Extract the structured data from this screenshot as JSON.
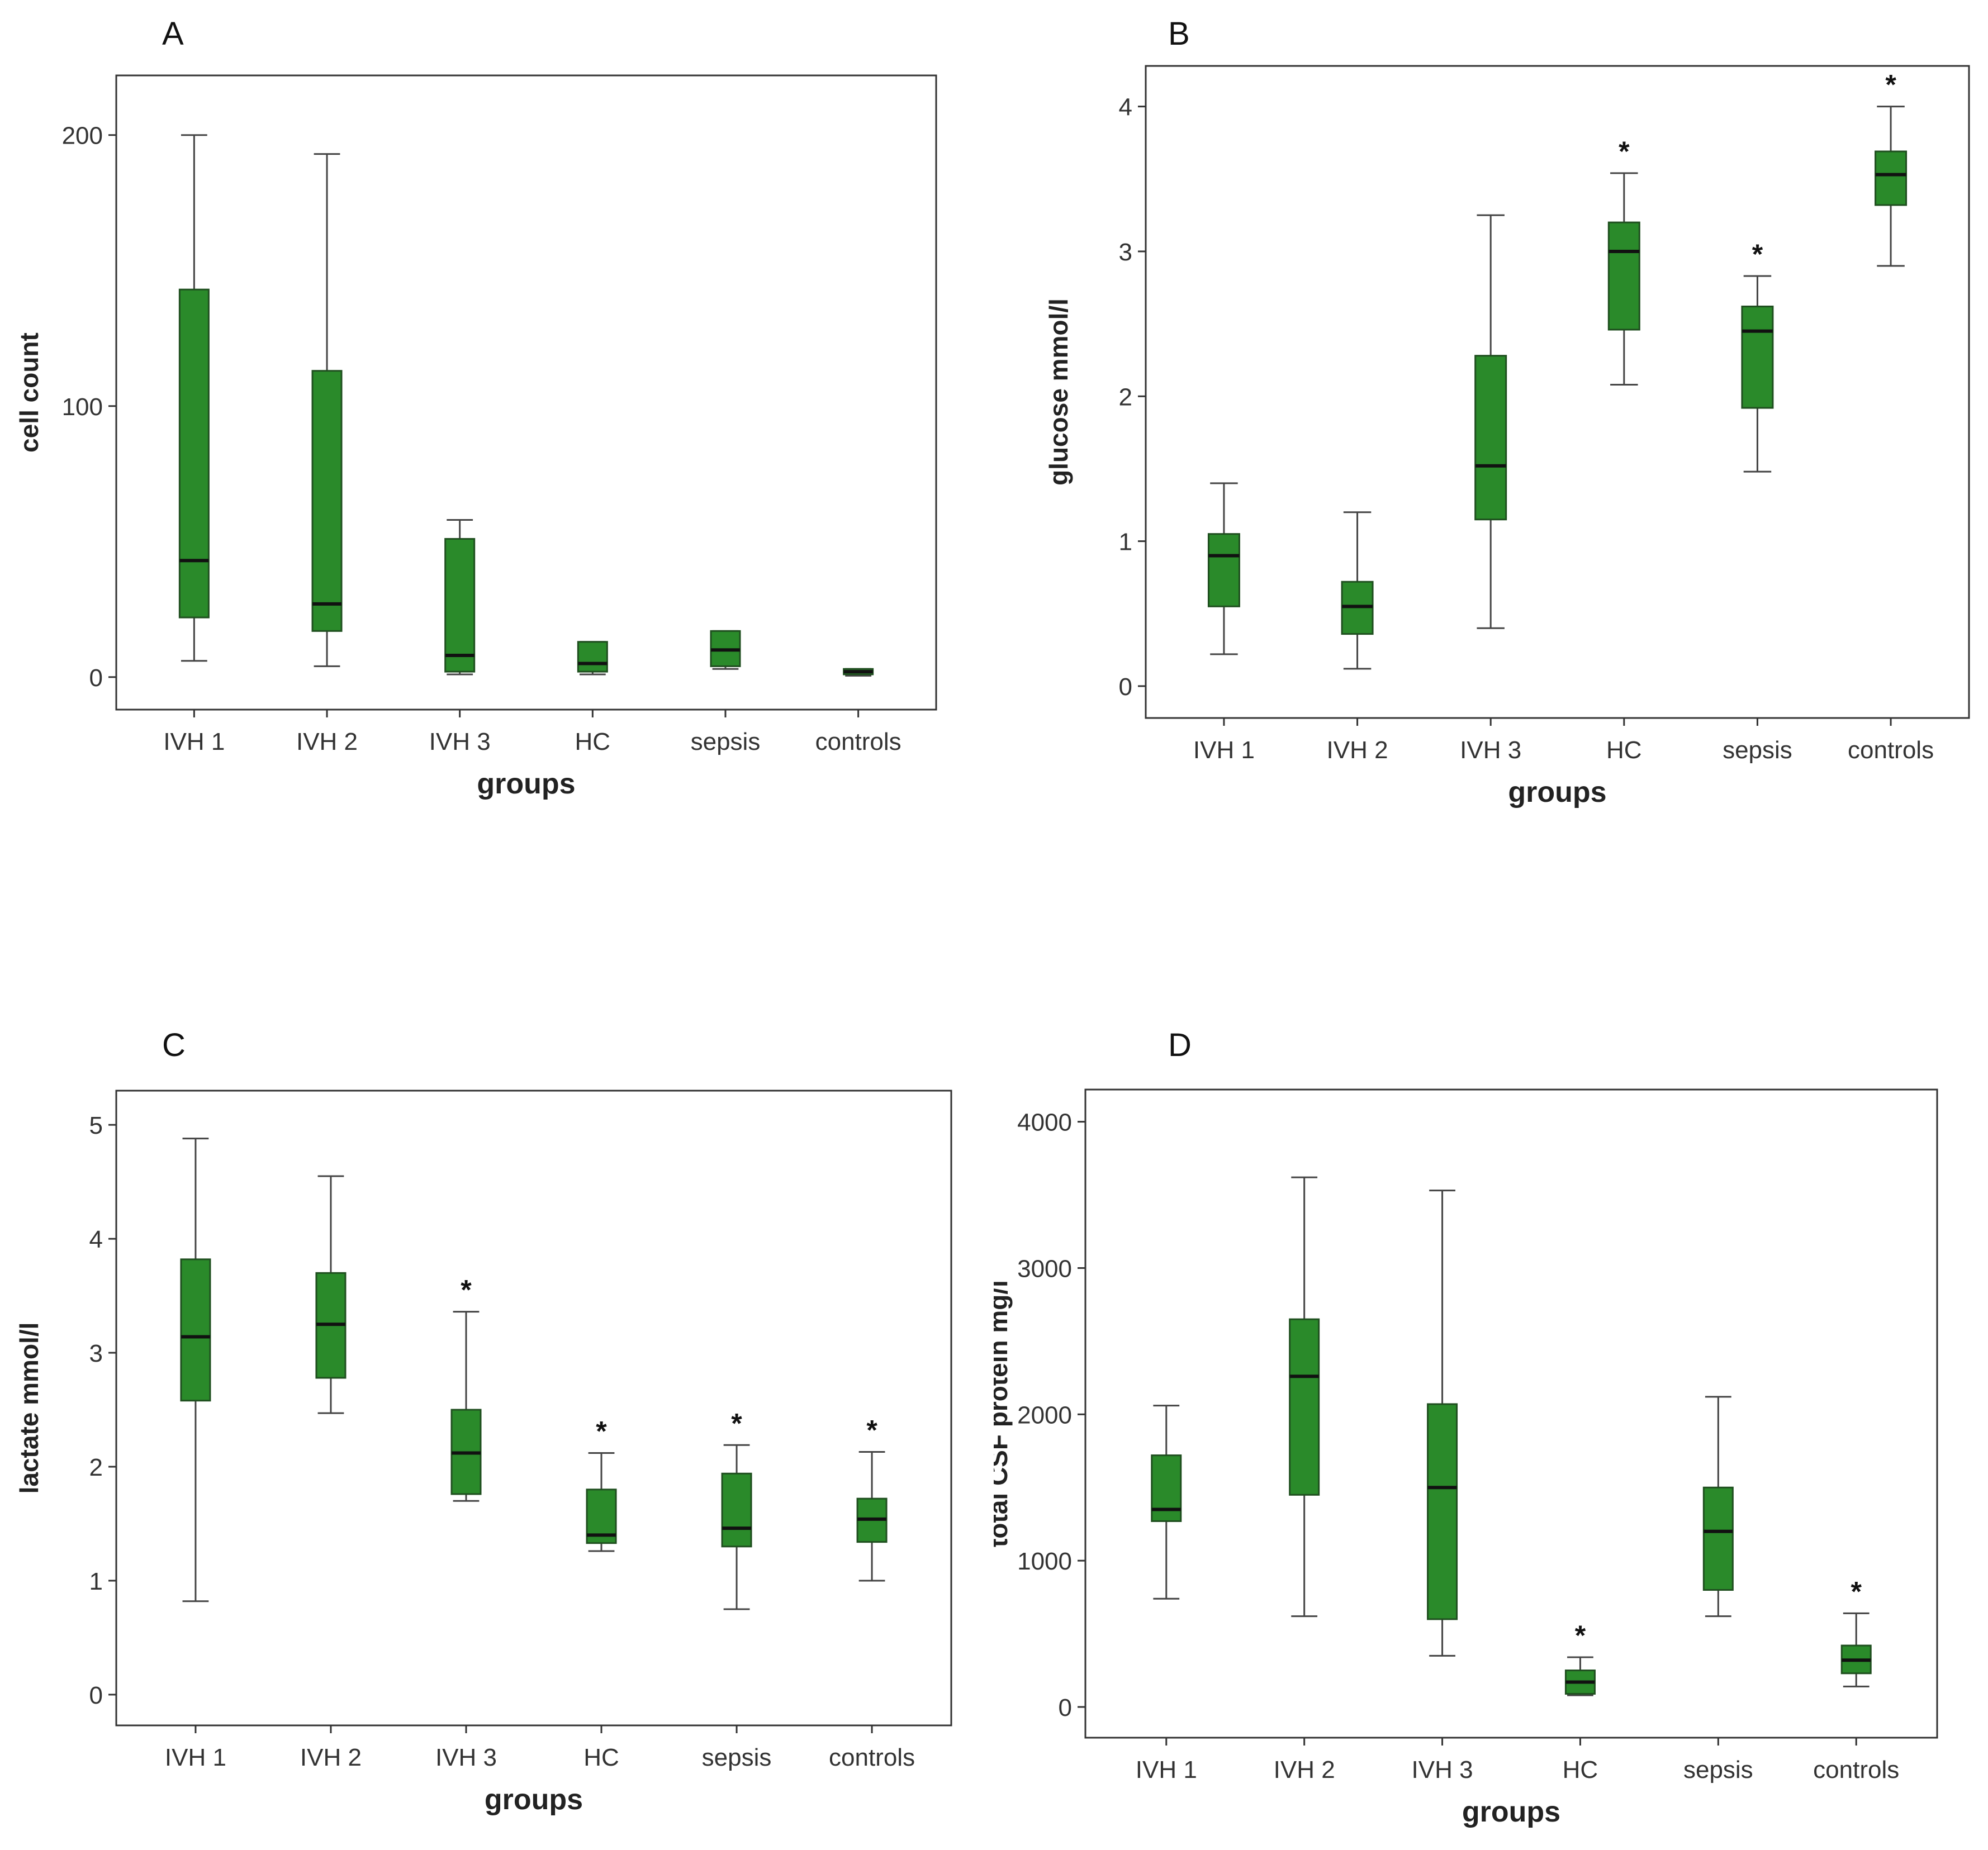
{
  "colors": {
    "box_fill": "#2a8a2a",
    "box_stroke": "#1f4f1f",
    "whisker": "#444444",
    "axis": "#333333",
    "frame": "#333333"
  },
  "chart_data": [
    {
      "type": "box",
      "panel_label": "A",
      "xlabel": "groups",
      "ylabel": "cell count",
      "categories": [
        "IVH 1",
        "IVH 2",
        "IVH 3",
        "HC",
        "sepsis",
        "controls"
      ],
      "ylim": [
        -12,
        222
      ],
      "yticks": [
        0,
        100,
        200
      ],
      "boxes": [
        {
          "min": 6,
          "q1": 22,
          "median": 43,
          "q3": 143,
          "max": 200,
          "star": false
        },
        {
          "min": 4,
          "q1": 17,
          "median": 27,
          "q3": 113,
          "max": 193,
          "star": false
        },
        {
          "min": 1,
          "q1": 2,
          "median": 8,
          "q3": 51,
          "max": 58,
          "star": false
        },
        {
          "min": 1,
          "q1": 2,
          "median": 5,
          "q3": 13,
          "max": 13,
          "star": false
        },
        {
          "min": 3,
          "q1": 4,
          "median": 10,
          "q3": 17,
          "max": 17,
          "star": false
        },
        {
          "min": 0.5,
          "q1": 1,
          "median": 2,
          "q3": 3,
          "max": 3,
          "star": false
        }
      ]
    },
    {
      "type": "box",
      "panel_label": "B",
      "xlabel": "groups",
      "ylabel": "glucose mmol/l",
      "categories": [
        "IVH 1",
        "IVH 2",
        "IVH 3",
        "HC",
        "sepsis",
        "controls"
      ],
      "ylim": [
        -0.22,
        4.28
      ],
      "yticks": [
        0,
        1,
        2,
        3,
        4
      ],
      "boxes": [
        {
          "min": 0.22,
          "q1": 0.55,
          "median": 0.9,
          "q3": 1.05,
          "max": 1.4,
          "star": false
        },
        {
          "min": 0.12,
          "q1": 0.36,
          "median": 0.55,
          "q3": 0.72,
          "max": 1.2,
          "star": false
        },
        {
          "min": 0.4,
          "q1": 1.15,
          "median": 1.52,
          "q3": 2.28,
          "max": 3.25,
          "star": false
        },
        {
          "min": 2.08,
          "q1": 2.46,
          "median": 3.0,
          "q3": 3.2,
          "max": 3.54,
          "star": true
        },
        {
          "min": 1.48,
          "q1": 1.92,
          "median": 2.45,
          "q3": 2.62,
          "max": 2.83,
          "star": true
        },
        {
          "min": 2.9,
          "q1": 3.32,
          "median": 3.53,
          "q3": 3.69,
          "max": 4.0,
          "star": true
        }
      ]
    },
    {
      "type": "box",
      "panel_label": "C",
      "xlabel": "groups",
      "ylabel": "lactate mmol/l",
      "categories": [
        "IVH 1",
        "IVH 2",
        "IVH 3",
        "HC",
        "sepsis",
        "controls"
      ],
      "ylim": [
        -0.27,
        5.3
      ],
      "yticks": [
        0,
        1,
        2,
        3,
        4,
        5
      ],
      "boxes": [
        {
          "min": 0.82,
          "q1": 2.58,
          "median": 3.14,
          "q3": 3.82,
          "max": 4.88,
          "star": false
        },
        {
          "min": 2.47,
          "q1": 2.78,
          "median": 3.25,
          "q3": 3.7,
          "max": 4.55,
          "star": false
        },
        {
          "min": 1.7,
          "q1": 1.76,
          "median": 2.12,
          "q3": 2.5,
          "max": 3.36,
          "star": true
        },
        {
          "min": 1.26,
          "q1": 1.33,
          "median": 1.4,
          "q3": 1.8,
          "max": 2.12,
          "star": true
        },
        {
          "min": 0.75,
          "q1": 1.3,
          "median": 1.46,
          "q3": 1.94,
          "max": 2.19,
          "star": true
        },
        {
          "min": 1.0,
          "q1": 1.34,
          "median": 1.54,
          "q3": 1.72,
          "max": 2.13,
          "star": true
        }
      ]
    },
    {
      "type": "box",
      "panel_label": "D",
      "xlabel": "groups",
      "ylabel": "total CSF protein mg/l",
      "categories": [
        "IVH 1",
        "IVH 2",
        "IVH 3",
        "HC",
        "sepsis",
        "controls"
      ],
      "ylim": [
        -210,
        4220
      ],
      "yticks": [
        0,
        1000,
        2000,
        3000,
        4000
      ],
      "boxes": [
        {
          "min": 740,
          "q1": 1270,
          "median": 1350,
          "q3": 1720,
          "max": 2060,
          "star": false
        },
        {
          "min": 620,
          "q1": 1450,
          "median": 2260,
          "q3": 2650,
          "max": 3620,
          "star": false
        },
        {
          "min": 350,
          "q1": 600,
          "median": 1500,
          "q3": 2070,
          "max": 3530,
          "star": false
        },
        {
          "min": 80,
          "q1": 90,
          "median": 170,
          "q3": 250,
          "max": 340,
          "star": true
        },
        {
          "min": 620,
          "q1": 800,
          "median": 1200,
          "q3": 1500,
          "max": 2120,
          "star": false
        },
        {
          "min": 140,
          "q1": 230,
          "median": 320,
          "q3": 420,
          "max": 640,
          "star": true
        }
      ]
    }
  ]
}
